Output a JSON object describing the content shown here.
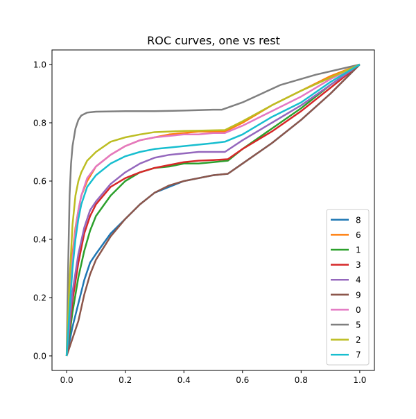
{
  "chart_data": {
    "type": "line",
    "title": "ROC curves, one vs rest",
    "xlabel": "",
    "ylabel": "",
    "xlim": [
      -0.05,
      1.05
    ],
    "ylim": [
      -0.05,
      1.05
    ],
    "x_ticks": [
      0.0,
      0.2,
      0.4,
      0.6,
      0.8,
      1.0
    ],
    "y_ticks": [
      0.0,
      0.2,
      0.4,
      0.6,
      0.8,
      1.0
    ],
    "x_tick_labels": [
      "0.0",
      "0.2",
      "0.4",
      "0.6",
      "0.8",
      "1.0"
    ],
    "y_tick_labels": [
      "0.0",
      "0.2",
      "0.4",
      "0.6",
      "0.8",
      "1.0"
    ],
    "grid": false,
    "legend_position": "lower-right",
    "series": [
      {
        "name": "8",
        "color": "#1f77b4",
        "points": [
          [
            0,
            0
          ],
          [
            0.02,
            0.1
          ],
          [
            0.04,
            0.18
          ],
          [
            0.06,
            0.26
          ],
          [
            0.08,
            0.32
          ],
          [
            0.1,
            0.35
          ],
          [
            0.15,
            0.42
          ],
          [
            0.2,
            0.47
          ],
          [
            0.25,
            0.52
          ],
          [
            0.3,
            0.56
          ],
          [
            0.35,
            0.58
          ],
          [
            0.4,
            0.6
          ],
          [
            0.45,
            0.61
          ],
          [
            0.5,
            0.62
          ],
          [
            0.55,
            0.625
          ],
          [
            0.6,
            0.66
          ],
          [
            0.7,
            0.73
          ],
          [
            0.8,
            0.81
          ],
          [
            0.9,
            0.9
          ],
          [
            1.0,
            1.0
          ]
        ]
      },
      {
        "name": "6",
        "color": "#ff7f0e",
        "points": [
          [
            0,
            0
          ],
          [
            0.01,
            0.2
          ],
          [
            0.02,
            0.35
          ],
          [
            0.03,
            0.44
          ],
          [
            0.04,
            0.5
          ],
          [
            0.05,
            0.55
          ],
          [
            0.07,
            0.6
          ],
          [
            0.1,
            0.65
          ],
          [
            0.15,
            0.69
          ],
          [
            0.2,
            0.72
          ],
          [
            0.25,
            0.74
          ],
          [
            0.3,
            0.75
          ],
          [
            0.35,
            0.76
          ],
          [
            0.4,
            0.765
          ],
          [
            0.45,
            0.77
          ],
          [
            0.5,
            0.77
          ],
          [
            0.54,
            0.77
          ],
          [
            0.6,
            0.8
          ],
          [
            0.7,
            0.86
          ],
          [
            0.8,
            0.91
          ],
          [
            0.9,
            0.96
          ],
          [
            1.0,
            1.0
          ]
        ]
      },
      {
        "name": "1",
        "color": "#2ca02c",
        "points": [
          [
            0,
            0
          ],
          [
            0.02,
            0.15
          ],
          [
            0.04,
            0.27
          ],
          [
            0.06,
            0.36
          ],
          [
            0.08,
            0.43
          ],
          [
            0.1,
            0.48
          ],
          [
            0.15,
            0.55
          ],
          [
            0.2,
            0.6
          ],
          [
            0.25,
            0.63
          ],
          [
            0.3,
            0.645
          ],
          [
            0.35,
            0.65
          ],
          [
            0.4,
            0.66
          ],
          [
            0.45,
            0.66
          ],
          [
            0.5,
            0.665
          ],
          [
            0.55,
            0.67
          ],
          [
            0.6,
            0.71
          ],
          [
            0.7,
            0.78
          ],
          [
            0.8,
            0.85
          ],
          [
            0.9,
            0.93
          ],
          [
            1.0,
            1.0
          ]
        ]
      },
      {
        "name": "3",
        "color": "#d62728",
        "points": [
          [
            0,
            0
          ],
          [
            0.02,
            0.19
          ],
          [
            0.04,
            0.32
          ],
          [
            0.06,
            0.42
          ],
          [
            0.08,
            0.48
          ],
          [
            0.1,
            0.52
          ],
          [
            0.15,
            0.58
          ],
          [
            0.2,
            0.61
          ],
          [
            0.25,
            0.63
          ],
          [
            0.3,
            0.645
          ],
          [
            0.35,
            0.655
          ],
          [
            0.4,
            0.665
          ],
          [
            0.45,
            0.67
          ],
          [
            0.5,
            0.672
          ],
          [
            0.55,
            0.675
          ],
          [
            0.6,
            0.71
          ],
          [
            0.7,
            0.77
          ],
          [
            0.8,
            0.84
          ],
          [
            0.9,
            0.92
          ],
          [
            1.0,
            1.0
          ]
        ]
      },
      {
        "name": "4",
        "color": "#9467bd",
        "points": [
          [
            0,
            0
          ],
          [
            0.02,
            0.22
          ],
          [
            0.04,
            0.35
          ],
          [
            0.06,
            0.44
          ],
          [
            0.08,
            0.5
          ],
          [
            0.1,
            0.53
          ],
          [
            0.15,
            0.59
          ],
          [
            0.2,
            0.63
          ],
          [
            0.25,
            0.66
          ],
          [
            0.3,
            0.68
          ],
          [
            0.35,
            0.69
          ],
          [
            0.4,
            0.695
          ],
          [
            0.45,
            0.7
          ],
          [
            0.5,
            0.7
          ],
          [
            0.54,
            0.7
          ],
          [
            0.6,
            0.74
          ],
          [
            0.7,
            0.8
          ],
          [
            0.8,
            0.86
          ],
          [
            0.9,
            0.93
          ],
          [
            1.0,
            1.0
          ]
        ]
      },
      {
        "name": "9",
        "color": "#8c564b",
        "points": [
          [
            0,
            0
          ],
          [
            0.02,
            0.06
          ],
          [
            0.04,
            0.12
          ],
          [
            0.06,
            0.21
          ],
          [
            0.08,
            0.28
          ],
          [
            0.1,
            0.33
          ],
          [
            0.15,
            0.41
          ],
          [
            0.2,
            0.47
          ],
          [
            0.25,
            0.52
          ],
          [
            0.3,
            0.56
          ],
          [
            0.35,
            0.585
          ],
          [
            0.4,
            0.6
          ],
          [
            0.45,
            0.61
          ],
          [
            0.5,
            0.62
          ],
          [
            0.55,
            0.625
          ],
          [
            0.6,
            0.66
          ],
          [
            0.7,
            0.73
          ],
          [
            0.8,
            0.81
          ],
          [
            0.9,
            0.9
          ],
          [
            1.0,
            1.0
          ]
        ]
      },
      {
        "name": "0",
        "color": "#e377c2",
        "points": [
          [
            0,
            0
          ],
          [
            0.01,
            0.18
          ],
          [
            0.02,
            0.33
          ],
          [
            0.03,
            0.43
          ],
          [
            0.04,
            0.5
          ],
          [
            0.05,
            0.55
          ],
          [
            0.07,
            0.61
          ],
          [
            0.1,
            0.65
          ],
          [
            0.15,
            0.69
          ],
          [
            0.2,
            0.72
          ],
          [
            0.25,
            0.74
          ],
          [
            0.3,
            0.75
          ],
          [
            0.35,
            0.755
          ],
          [
            0.4,
            0.76
          ],
          [
            0.45,
            0.76
          ],
          [
            0.5,
            0.765
          ],
          [
            0.54,
            0.765
          ],
          [
            0.6,
            0.79
          ],
          [
            0.7,
            0.84
          ],
          [
            0.8,
            0.89
          ],
          [
            0.9,
            0.95
          ],
          [
            1.0,
            1.0
          ]
        ]
      },
      {
        "name": "5",
        "color": "#7f7f7f",
        "points": [
          [
            0,
            0
          ],
          [
            0.005,
            0.3
          ],
          [
            0.01,
            0.55
          ],
          [
            0.015,
            0.66
          ],
          [
            0.02,
            0.72
          ],
          [
            0.03,
            0.78
          ],
          [
            0.04,
            0.81
          ],
          [
            0.05,
            0.825
          ],
          [
            0.07,
            0.835
          ],
          [
            0.1,
            0.838
          ],
          [
            0.2,
            0.84
          ],
          [
            0.3,
            0.84
          ],
          [
            0.4,
            0.842
          ],
          [
            0.5,
            0.845
          ],
          [
            0.53,
            0.845
          ],
          [
            0.6,
            0.87
          ],
          [
            0.73,
            0.93
          ],
          [
            0.85,
            0.965
          ],
          [
            1.0,
            1.0
          ]
        ]
      },
      {
        "name": "2",
        "color": "#bcbd22",
        "points": [
          [
            0,
            0
          ],
          [
            0.01,
            0.26
          ],
          [
            0.02,
            0.45
          ],
          [
            0.03,
            0.55
          ],
          [
            0.04,
            0.6
          ],
          [
            0.05,
            0.63
          ],
          [
            0.07,
            0.67
          ],
          [
            0.1,
            0.7
          ],
          [
            0.15,
            0.735
          ],
          [
            0.2,
            0.75
          ],
          [
            0.25,
            0.76
          ],
          [
            0.3,
            0.768
          ],
          [
            0.35,
            0.77
          ],
          [
            0.4,
            0.772
          ],
          [
            0.45,
            0.773
          ],
          [
            0.5,
            0.774
          ],
          [
            0.54,
            0.775
          ],
          [
            0.6,
            0.805
          ],
          [
            0.7,
            0.86
          ],
          [
            0.8,
            0.91
          ],
          [
            0.9,
            0.955
          ],
          [
            1.0,
            1.0
          ]
        ]
      },
      {
        "name": "7",
        "color": "#17becf",
        "points": [
          [
            0,
            0
          ],
          [
            0.01,
            0.16
          ],
          [
            0.02,
            0.3
          ],
          [
            0.03,
            0.4
          ],
          [
            0.04,
            0.47
          ],
          [
            0.05,
            0.52
          ],
          [
            0.07,
            0.58
          ],
          [
            0.1,
            0.62
          ],
          [
            0.15,
            0.66
          ],
          [
            0.2,
            0.685
          ],
          [
            0.25,
            0.7
          ],
          [
            0.3,
            0.71
          ],
          [
            0.35,
            0.715
          ],
          [
            0.4,
            0.72
          ],
          [
            0.45,
            0.725
          ],
          [
            0.5,
            0.73
          ],
          [
            0.54,
            0.735
          ],
          [
            0.6,
            0.76
          ],
          [
            0.7,
            0.82
          ],
          [
            0.8,
            0.87
          ],
          [
            0.9,
            0.94
          ],
          [
            1.0,
            1.0
          ]
        ]
      }
    ]
  }
}
